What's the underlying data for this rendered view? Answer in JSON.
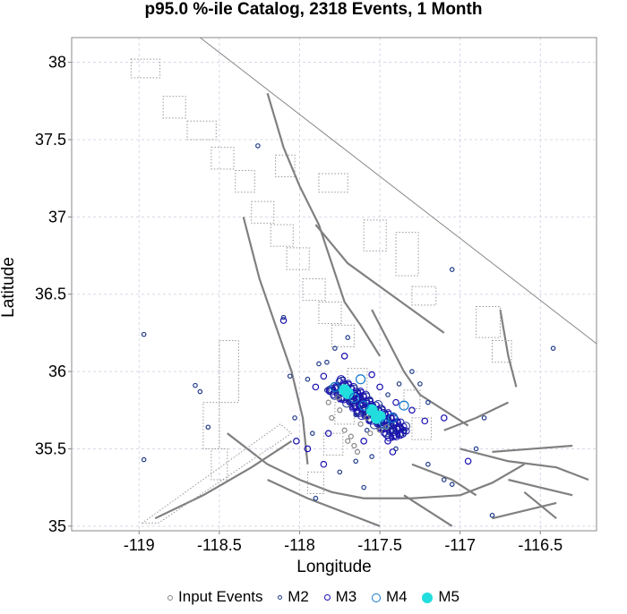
{
  "chart_data": {
    "type": "scatter",
    "title": "p95.0 %-ile Catalog, 2318 Events, 1 Month",
    "xlabel": "Longitude",
    "ylabel": "Latitude",
    "xlim": [
      -119.42,
      -116.15
    ],
    "ylim": [
      34.97,
      38.16
    ],
    "xticks": [
      -119,
      -118.5,
      -118,
      -117.5,
      -117,
      -116.5
    ],
    "yticks": [
      35,
      35.5,
      36,
      36.5,
      37,
      37.5,
      38
    ],
    "grid": true,
    "legend_position": "bottom",
    "legend": [
      "Input Events",
      "M2",
      "M3",
      "M4",
      "M5"
    ],
    "colors": {
      "input": "#888888",
      "m2": "#1f3a8a",
      "m3": "#1a10b0",
      "m4": "#1177cc",
      "m5": "#22dddd",
      "fault": "#808080"
    },
    "series": [
      {
        "name": "M5",
        "points": [
          [
            -117.72,
            35.88
          ],
          [
            -117.7,
            35.86
          ],
          [
            -117.52,
            35.7
          ],
          [
            -117.5,
            35.71
          ],
          [
            -117.55,
            35.75
          ]
        ]
      },
      {
        "name": "M4",
        "points": [
          [
            -117.78,
            35.9
          ],
          [
            -117.66,
            35.83
          ],
          [
            -117.6,
            35.78
          ],
          [
            -117.47,
            35.66
          ],
          [
            -117.42,
            35.7
          ],
          [
            -117.35,
            35.78
          ],
          [
            -117.62,
            35.95
          ]
        ]
      },
      {
        "name": "M3",
        "points": [
          [
            -118.1,
            36.33
          ],
          [
            -117.95,
            35.5
          ],
          [
            -117.9,
            35.9
          ],
          [
            -117.85,
            35.97
          ],
          [
            -117.72,
            36.1
          ],
          [
            -117.55,
            35.98
          ],
          [
            -117.4,
            35.8
          ],
          [
            -117.3,
            35.75
          ],
          [
            -117.35,
            35.62
          ],
          [
            -117.22,
            35.68
          ],
          [
            -117.1,
            35.7
          ],
          [
            -116.95,
            35.42
          ],
          [
            -117.42,
            35.48
          ],
          [
            -117.6,
            35.55
          ],
          [
            -117.85,
            35.4
          ],
          [
            -118.02,
            35.55
          ],
          [
            -117.82,
            35.6
          ],
          [
            -117.5,
            35.9
          ],
          [
            -117.45,
            35.55
          ]
        ]
      },
      {
        "name": "M2",
        "points": [
          [
            -118.97,
            36.24
          ],
          [
            -118.97,
            35.43
          ],
          [
            -118.65,
            35.91
          ],
          [
            -118.62,
            35.87
          ],
          [
            -118.57,
            35.64
          ],
          [
            -118.26,
            37.46
          ],
          [
            -118.1,
            36.35
          ],
          [
            -118.06,
            35.97
          ],
          [
            -118.03,
            35.7
          ],
          [
            -117.92,
            35.6
          ],
          [
            -117.9,
            35.18
          ],
          [
            -117.83,
            36.06
          ],
          [
            -117.78,
            36.15
          ],
          [
            -117.7,
            36.22
          ],
          [
            -117.65,
            35.42
          ],
          [
            -117.6,
            35.25
          ],
          [
            -117.55,
            35.45
          ],
          [
            -117.4,
            35.5
          ],
          [
            -117.2,
            35.4
          ],
          [
            -117.1,
            35.3
          ],
          [
            -117.05,
            35.27
          ],
          [
            -116.9,
            35.5
          ],
          [
            -116.8,
            35.07
          ],
          [
            -116.85,
            35.7
          ],
          [
            -116.42,
            36.15
          ],
          [
            -117.05,
            36.66
          ],
          [
            -117.25,
            35.92
          ],
          [
            -117.3,
            36.0
          ],
          [
            -117.2,
            35.8
          ],
          [
            -117.95,
            35.95
          ],
          [
            -117.88,
            36.05
          ],
          [
            -117.75,
            35.35
          ],
          [
            -117.65,
            35.72
          ],
          [
            -117.58,
            35.62
          ],
          [
            -117.45,
            35.85
          ],
          [
            -117.38,
            35.92
          ]
        ]
      },
      {
        "name": "Input Events",
        "points": [
          [
            -117.72,
            35.62
          ],
          [
            -117.68,
            35.58
          ],
          [
            -117.66,
            35.52
          ],
          [
            -117.64,
            35.48
          ],
          [
            -117.7,
            35.55
          ],
          [
            -117.8,
            35.7
          ],
          [
            -117.75,
            35.75
          ],
          [
            -117.58,
            35.7
          ],
          [
            -117.62,
            35.66
          ],
          [
            -117.56,
            35.6
          ],
          [
            -117.5,
            35.62
          ],
          [
            -117.46,
            35.64
          ],
          [
            -117.76,
            35.83
          ],
          [
            -117.82,
            35.8
          ]
        ]
      }
    ]
  }
}
